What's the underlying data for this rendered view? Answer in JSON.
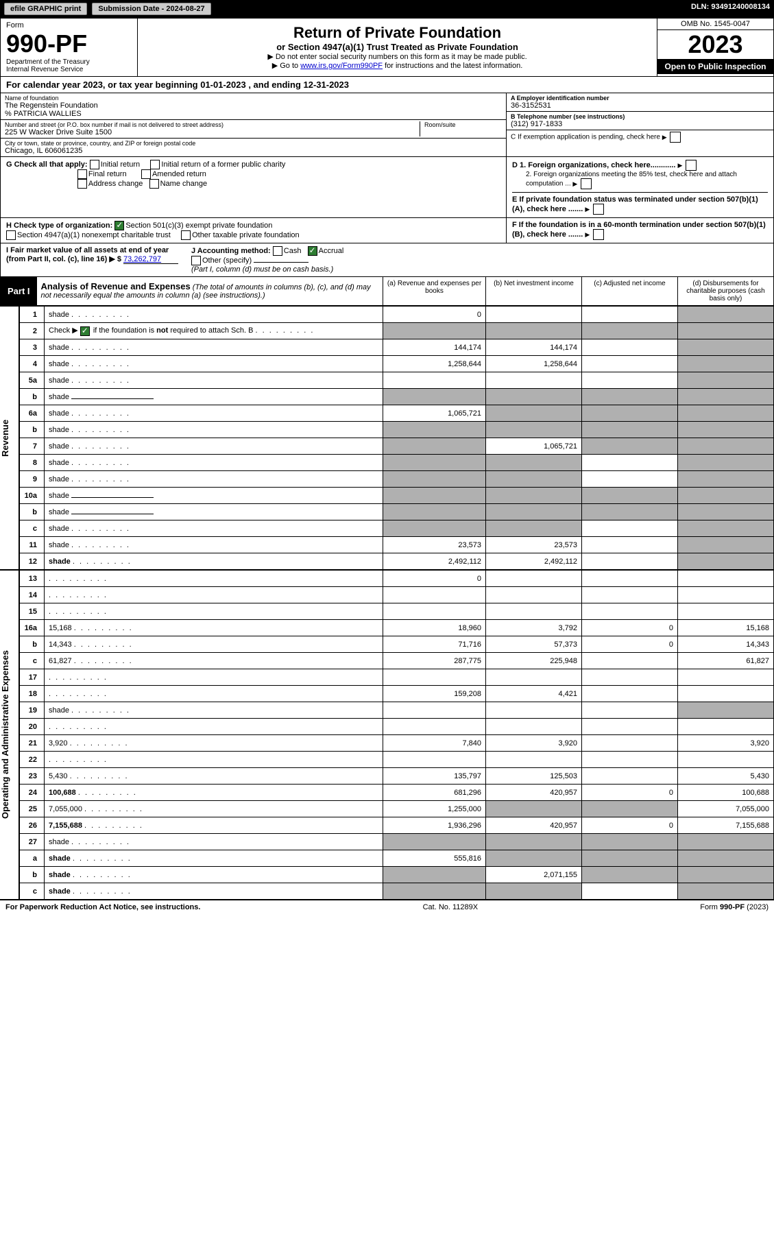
{
  "top": {
    "efile": "efile GRAPHIC print",
    "submission_label": "Submission Date - 2024-08-27",
    "dln": "DLN: 93491240008134"
  },
  "header": {
    "form": "Form",
    "number": "990-PF",
    "dept": "Department of the Treasury",
    "irs": "Internal Revenue Service",
    "title": "Return of Private Foundation",
    "subtitle": "or Section 4947(a)(1) Trust Treated as Private Foundation",
    "note1": "▶ Do not enter social security numbers on this form as it may be made public.",
    "note2_pre": "▶ Go to ",
    "note2_link": "www.irs.gov/Form990PF",
    "note2_post": " for instructions and the latest information.",
    "omb": "OMB No. 1545-0047",
    "year": "2023",
    "open": "Open to Public Inspection"
  },
  "cal": "For calendar year 2023, or tax year beginning 01-01-2023               , and ending 12-31-2023",
  "info": {
    "name_label": "Name of foundation",
    "name": "The Regenstein Foundation",
    "care_of": "% PATRICIA WALLIES",
    "addr_label": "Number and street (or P.O. box number if mail is not delivered to street address)",
    "addr": "225 W Wacker Drive Suite 1500",
    "room_label": "Room/suite",
    "city_label": "City or town, state or province, country, and ZIP or foreign postal code",
    "city": "Chicago, IL  606061235",
    "a_label": "A Employer identification number",
    "ein": "36-3152531",
    "b_label": "B Telephone number (see instructions)",
    "phone": "(312) 917-1833",
    "c_label": "C If exemption application is pending, check here"
  },
  "secG": {
    "label": "G Check all that apply:",
    "o1": "Initial return",
    "o2": "Initial return of a former public charity",
    "o3": "Final return",
    "o4": "Amended return",
    "o5": "Address change",
    "o6": "Name change",
    "d1": "D 1. Foreign organizations, check here............",
    "d2": "2. Foreign organizations meeting the 85% test, check here and attach computation ...",
    "e": "E  If private foundation status was terminated under section 507(b)(1)(A), check here ......."
  },
  "secH": {
    "label": "H Check type of organization:",
    "o1": "Section 501(c)(3) exempt private foundation",
    "o2": "Section 4947(a)(1) nonexempt charitable trust",
    "o3": "Other taxable private foundation",
    "f": "F  If the foundation is in a 60-month termination under section 507(b)(1)(B), check here ......."
  },
  "secI": {
    "label": "I Fair market value of all assets at end of year (from Part II, col. (c), line 16) ▶ $",
    "val": "73,262,797",
    "j_label": "J Accounting method:",
    "j_cash": "Cash",
    "j_accrual": "Accrual",
    "j_other": "Other (specify)",
    "j_note": "(Part I, column (d) must be on cash basis.)"
  },
  "part1": {
    "label": "Part I",
    "title": "Analysis of Revenue and Expenses",
    "sub": "(The total of amounts in columns (b), (c), and (d) may not necessarily equal the amounts in column (a) (see instructions).)",
    "col_a": "(a)   Revenue and expenses per books",
    "col_b": "(b)   Net investment income",
    "col_c": "(c)   Adjusted net income",
    "col_d": "(d)   Disbursements for charitable purposes (cash basis only)"
  },
  "sides": {
    "rev": "Revenue",
    "exp": "Operating and Administrative Expenses"
  },
  "rows": [
    {
      "n": "1",
      "d": "shade",
      "a": "0",
      "b": "",
      "c": ""
    },
    {
      "n": "2",
      "d": "shade",
      "a": "shade",
      "b": "shade",
      "c": "shade",
      "checkbox": true
    },
    {
      "n": "3",
      "d": "shade",
      "a": "144,174",
      "b": "144,174",
      "c": ""
    },
    {
      "n": "4",
      "d": "shade",
      "a": "1,258,644",
      "b": "1,258,644",
      "c": ""
    },
    {
      "n": "5a",
      "d": "shade",
      "a": "",
      "b": "",
      "c": ""
    },
    {
      "n": "b",
      "d": "shade",
      "a": "shade",
      "b": "shade",
      "c": "shade",
      "inline": true
    },
    {
      "n": "6a",
      "d": "shade",
      "a": "1,065,721",
      "b": "shade",
      "c": "shade"
    },
    {
      "n": "b",
      "d": "shade",
      "a": "shade",
      "b": "shade",
      "c": "shade"
    },
    {
      "n": "7",
      "d": "shade",
      "a": "shade",
      "b": "1,065,721",
      "c": "shade"
    },
    {
      "n": "8",
      "d": "shade",
      "a": "shade",
      "b": "shade",
      "c": ""
    },
    {
      "n": "9",
      "d": "shade",
      "a": "shade",
      "b": "shade",
      "c": ""
    },
    {
      "n": "10a",
      "d": "shade",
      "a": "shade",
      "b": "shade",
      "c": "shade",
      "inline": true
    },
    {
      "n": "b",
      "d": "shade",
      "a": "shade",
      "b": "shade",
      "c": "shade",
      "inline": true
    },
    {
      "n": "c",
      "d": "shade",
      "a": "shade",
      "b": "shade",
      "c": ""
    },
    {
      "n": "11",
      "d": "shade",
      "a": "23,573",
      "b": "23,573",
      "c": ""
    },
    {
      "n": "12",
      "d": "shade",
      "a": "2,492,112",
      "b": "2,492,112",
      "c": "",
      "bold": true
    }
  ],
  "exp_rows": [
    {
      "n": "13",
      "d": "",
      "a": "0",
      "b": "",
      "c": ""
    },
    {
      "n": "14",
      "d": "",
      "a": "",
      "b": "",
      "c": ""
    },
    {
      "n": "15",
      "d": "",
      "a": "",
      "b": "",
      "c": ""
    },
    {
      "n": "16a",
      "d": "15,168",
      "a": "18,960",
      "b": "3,792",
      "c": "0"
    },
    {
      "n": "b",
      "d": "14,343",
      "a": "71,716",
      "b": "57,373",
      "c": "0"
    },
    {
      "n": "c",
      "d": "61,827",
      "a": "287,775",
      "b": "225,948",
      "c": ""
    },
    {
      "n": "17",
      "d": "",
      "a": "",
      "b": "",
      "c": ""
    },
    {
      "n": "18",
      "d": "",
      "a": "159,208",
      "b": "4,421",
      "c": ""
    },
    {
      "n": "19",
      "d": "shade",
      "a": "",
      "b": "",
      "c": ""
    },
    {
      "n": "20",
      "d": "",
      "a": "",
      "b": "",
      "c": ""
    },
    {
      "n": "21",
      "d": "3,920",
      "a": "7,840",
      "b": "3,920",
      "c": ""
    },
    {
      "n": "22",
      "d": "",
      "a": "",
      "b": "",
      "c": ""
    },
    {
      "n": "23",
      "d": "5,430",
      "a": "135,797",
      "b": "125,503",
      "c": ""
    },
    {
      "n": "24",
      "d": "100,688",
      "a": "681,296",
      "b": "420,957",
      "c": "0",
      "bold": true
    },
    {
      "n": "25",
      "d": "7,055,000",
      "a": "1,255,000",
      "b": "shade",
      "c": "shade"
    },
    {
      "n": "26",
      "d": "7,155,688",
      "a": "1,936,296",
      "b": "420,957",
      "c": "0",
      "bold": true
    },
    {
      "n": "27",
      "d": "shade",
      "a": "shade",
      "b": "shade",
      "c": "shade"
    },
    {
      "n": "a",
      "d": "shade",
      "a": "555,816",
      "b": "shade",
      "c": "shade",
      "bold": true
    },
    {
      "n": "b",
      "d": "shade",
      "a": "shade",
      "b": "2,071,155",
      "c": "shade",
      "bold": true
    },
    {
      "n": "c",
      "d": "shade",
      "a": "shade",
      "b": "shade",
      "c": "",
      "bold": true
    }
  ],
  "footer": {
    "left": "For Paperwork Reduction Act Notice, see instructions.",
    "mid": "Cat. No. 11289X",
    "right": "Form 990-PF (2023)"
  }
}
